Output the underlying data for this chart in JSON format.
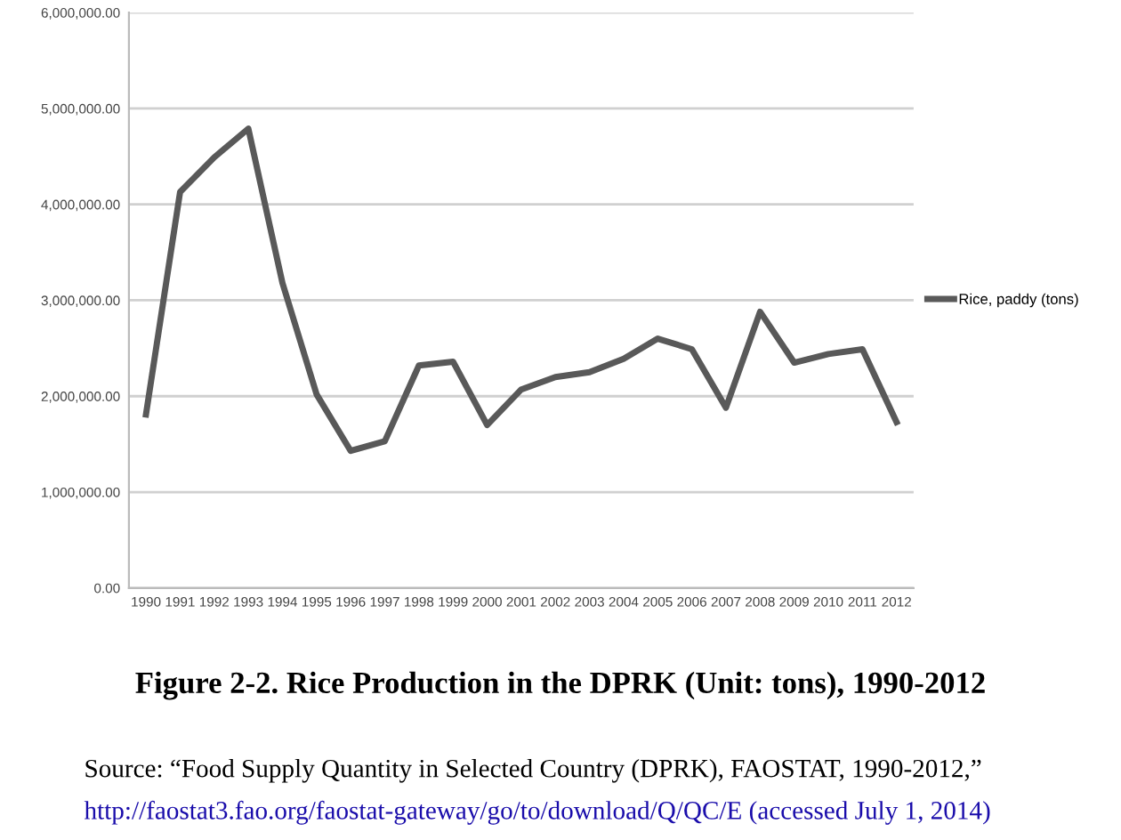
{
  "chart_data": {
    "type": "line",
    "title": "Figure 2-2. Rice Production in the DPRK (Unit: tons), 1990-2012",
    "annotations": [
      "Source: “Food Supply Quantity in Selected Country (DPRK), FAOSTAT, 1990-2012,”",
      "http://faostat3.fao.org/faostat-gateway/go/to/download/Q/QC/E (accessed July 1, 2014)"
    ],
    "categories": [
      "1990",
      "1991",
      "1992",
      "1993",
      "1994",
      "1995",
      "1996",
      "1997",
      "1998",
      "1999",
      "2000",
      "2001",
      "2002",
      "2003",
      "2004",
      "2005",
      "2006",
      "2007",
      "2008",
      "2009",
      "2010",
      "2011",
      "2012"
    ],
    "series": [
      {
        "name": "Rice, paddy (tons)",
        "color": "#595959",
        "values": [
          1810000,
          4130000,
          4490000,
          4790000,
          3180000,
          2020000,
          1430000,
          1530000,
          2320000,
          2360000,
          1700000,
          2070000,
          2200000,
          2250000,
          2390000,
          2600000,
          2490000,
          1880000,
          2880000,
          2350000,
          2440000,
          2490000,
          1730000
        ]
      }
    ],
    "ylim": [
      0,
      6000000
    ],
    "yticks": [
      {
        "value": 0,
        "label": "0.00"
      },
      {
        "value": 1000000,
        "label": "1,000,000.00"
      },
      {
        "value": 2000000,
        "label": "2,000,000.00"
      },
      {
        "value": 3000000,
        "label": "3,000,000.00"
      },
      {
        "value": 4000000,
        "label": "4,000,000.00"
      },
      {
        "value": 5000000,
        "label": "5,000,000.00"
      },
      {
        "value": 6000000,
        "label": "6,000,000.00"
      }
    ],
    "grid": "y",
    "legend": "right",
    "marker": "none",
    "line_style": "solid"
  }
}
